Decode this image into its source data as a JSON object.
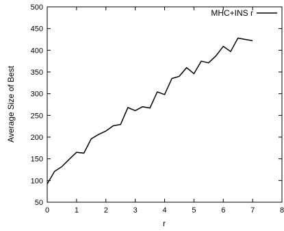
{
  "chart_data": {
    "type": "line",
    "xlabel": "r",
    "ylabel": "Average Size of Best",
    "xlim": [
      0,
      8
    ],
    "ylim": [
      50,
      500
    ],
    "xticks": [
      0,
      1,
      2,
      3,
      4,
      5,
      6,
      7,
      8
    ],
    "yticks": [
      50,
      100,
      150,
      200,
      250,
      300,
      350,
      400,
      450,
      500
    ],
    "grid": false,
    "legend_position": "top-right",
    "series": [
      {
        "name": "MHC+INS r",
        "color": "#000000",
        "x": [
          0,
          0.25,
          0.5,
          0.75,
          1,
          1.25,
          1.5,
          1.75,
          2,
          2.25,
          2.5,
          2.75,
          3,
          3.25,
          3.5,
          3.75,
          4,
          4.25,
          4.5,
          4.75,
          5,
          5.25,
          5.5,
          5.75,
          6,
          6.25,
          6.5,
          6.75,
          7
        ],
        "values": [
          92,
          121,
          132,
          149,
          165,
          163,
          196,
          206,
          214,
          226,
          229,
          268,
          261,
          270,
          267,
          304,
          298,
          335,
          340,
          360,
          346,
          375,
          371,
          387,
          409,
          397,
          428,
          425,
          422
        ]
      }
    ]
  }
}
